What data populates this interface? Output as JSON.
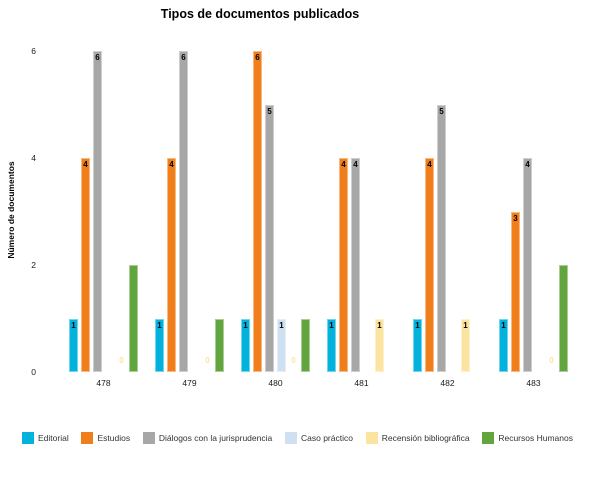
{
  "chart_data": {
    "type": "bar",
    "title": "Tipos de documentos publicados",
    "xlabel": "",
    "ylabel": "Número de documentos",
    "categories": [
      "478",
      "479",
      "480",
      "481",
      "482",
      "483"
    ],
    "series": [
      {
        "name": "Editorial",
        "color": "#00b2dc",
        "values": [
          1,
          1,
          1,
          1,
          1,
          1
        ],
        "labels": [
          "1",
          "1",
          "1",
          "1",
          "1",
          "1"
        ]
      },
      {
        "name": "Estudios",
        "color": "#f07e1a",
        "values": [
          4,
          4,
          6,
          4,
          4,
          3
        ],
        "labels": [
          "4",
          "4",
          "6",
          "4",
          "4",
          "3"
        ]
      },
      {
        "name": "Diálogos con la jurisprudencia",
        "color": "#a7a7a7",
        "values": [
          6,
          6,
          5,
          4,
          5,
          4
        ],
        "labels": [
          "6",
          "6",
          "5",
          "4",
          "5",
          "4"
        ]
      },
      {
        "name": "Caso práctico",
        "color": "#cfe0f0",
        "values": [
          0,
          0,
          1,
          0,
          0,
          0
        ],
        "labels": [
          "",
          "",
          "1",
          "",
          "",
          ""
        ]
      },
      {
        "name": "Recensión bibliográfica",
        "color": "#fbe3a0",
        "values": [
          0,
          0,
          0,
          1,
          1,
          0
        ],
        "labels": [
          "0",
          "0",
          "0",
          "1",
          "1",
          "0"
        ]
      },
      {
        "name": "Recursos Humanos",
        "color": "#62a43e",
        "values": [
          2,
          1,
          1,
          0,
          0,
          2
        ],
        "labels": [
          "",
          "",
          "",
          "",
          "",
          ""
        ]
      }
    ],
    "yticks": [
      0,
      2,
      4,
      6
    ],
    "ylim": [
      0,
      6
    ],
    "grid": false,
    "axis_lines": false,
    "legend_position": "bottom"
  }
}
